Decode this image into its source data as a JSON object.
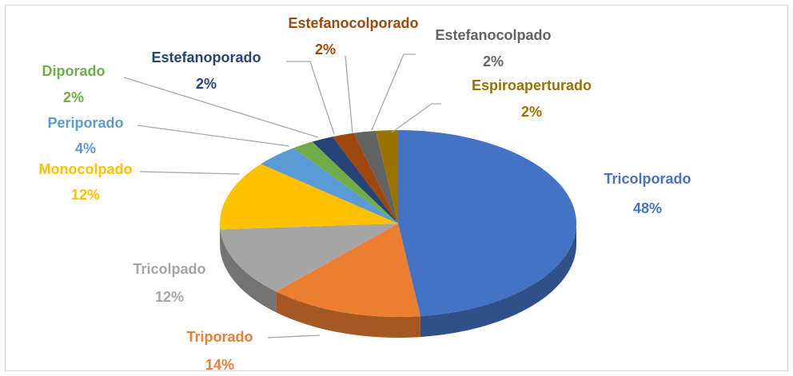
{
  "chart_data": {
    "type": "pie",
    "categories": [
      "Tricolporado",
      "Triporado",
      "Tricolpado",
      "Monocolpado",
      "Periporado",
      "Diporado",
      "Estefanoporado",
      "Estefanocolporado",
      "Estefanocolpado",
      "Espiroaperturado"
    ],
    "values": [
      48,
      14,
      12,
      12,
      4,
      2,
      2,
      2,
      2,
      2
    ],
    "value_labels": [
      "48%",
      "14%",
      "12%",
      "12%",
      "4%",
      "2%",
      "2%",
      "2%",
      "2%",
      "2%"
    ],
    "colors": [
      "#4472c4",
      "#ed7d31",
      "#a5a5a5",
      "#ffc000",
      "#5b9bd5",
      "#70ad47",
      "#264478",
      "#9e480e",
      "#636363",
      "#997300"
    ]
  }
}
